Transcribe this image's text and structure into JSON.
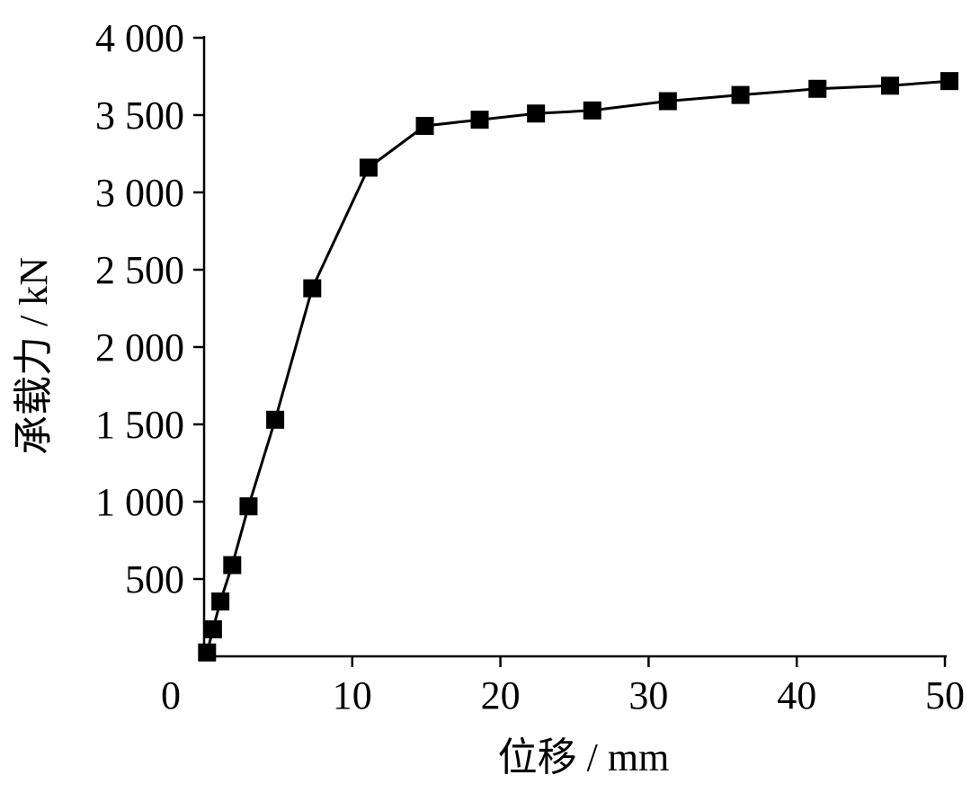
{
  "chart_data": {
    "type": "line",
    "title": "",
    "xlabel": "位移 / mm",
    "ylabel": "承载力 / kN",
    "xlim": [
      0,
      50
    ],
    "ylim": [
      0,
      4000
    ],
    "x_ticks": [
      10,
      20,
      30,
      40,
      50
    ],
    "x_tick_labels": [
      "10",
      "20",
      "30",
      "40",
      "50"
    ],
    "y_ticks": [
      500,
      1000,
      1500,
      2000,
      2500,
      3000,
      3500,
      4000
    ],
    "y_tick_labels": [
      "500",
      "1 000",
      "1 500",
      "2 000",
      "2 500",
      "3 000",
      "3 500",
      "4 000"
    ],
    "origin_label": "0",
    "grid": false,
    "legend": "none",
    "marker": "square",
    "line_color": "#000000",
    "series": [
      {
        "x": [
          0.2,
          0.6,
          1.1,
          1.9,
          3.0,
          4.8,
          7.3,
          11.1,
          14.9,
          18.6,
          22.4,
          26.2,
          31.3,
          36.2,
          41.4,
          46.3,
          50.3
        ],
        "y": [
          25,
          175,
          355,
          590,
          970,
          1530,
          2380,
          3160,
          3430,
          3470,
          3510,
          3530,
          3590,
          3630,
          3670,
          3690,
          3720
        ]
      }
    ]
  }
}
